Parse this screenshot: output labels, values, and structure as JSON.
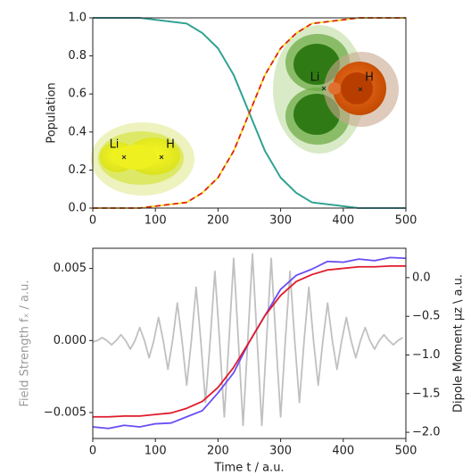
{
  "chart_data": [
    {
      "type": "line",
      "ylabel": "Population",
      "x": [
        0,
        25,
        50,
        75,
        100,
        125,
        150,
        175,
        200,
        225,
        250,
        275,
        300,
        325,
        350,
        375,
        400,
        425,
        450,
        475,
        500
      ],
      "series": [
        {
          "color": "#5b4fe0",
          "dashed": false,
          "values": [
            1.0,
            1.0,
            1.0,
            1.0,
            0.99,
            0.98,
            0.97,
            0.92,
            0.84,
            0.7,
            0.5,
            0.3,
            0.16,
            0.08,
            0.03,
            0.02,
            0.01,
            0,
            0,
            0,
            0
          ]
        },
        {
          "color": "#2aa88a",
          "dashed": false,
          "values": [
            1.0,
            1.0,
            1.0,
            1.0,
            0.99,
            0.98,
            0.97,
            0.92,
            0.84,
            0.7,
            0.5,
            0.3,
            0.16,
            0.08,
            0.03,
            0.02,
            0.01,
            0,
            0,
            0,
            0
          ]
        },
        {
          "color": "#f0e020",
          "dashed": false,
          "values": [
            0,
            0,
            0,
            0,
            0.01,
            0.02,
            0.03,
            0.08,
            0.16,
            0.3,
            0.5,
            0.7,
            0.84,
            0.92,
            0.97,
            0.98,
            0.99,
            1.0,
            1.0,
            1.0,
            1.0
          ]
        },
        {
          "color": "#e0201a",
          "dashed": true,
          "values": [
            0,
            0,
            0,
            0,
            0.01,
            0.02,
            0.03,
            0.08,
            0.16,
            0.3,
            0.5,
            0.7,
            0.84,
            0.92,
            0.97,
            0.98,
            0.99,
            1.0,
            1.0,
            1.0,
            1.0
          ]
        }
      ],
      "xlim": [
        0,
        500
      ],
      "xticks": [
        0,
        100,
        200,
        300,
        400,
        500
      ],
      "ylim": [
        0,
        1
      ],
      "yticks": [
        {
          "value": 0,
          "label": "0.0"
        },
        0.2,
        0.4,
        0.6,
        0.8,
        {
          "value": 1,
          "label": "1.0"
        }
      ],
      "annotations": [
        "Li",
        "H",
        "Li",
        "H"
      ]
    },
    {
      "type": "line",
      "xlabel": "Time t / a.u.",
      "ylabel": "Field Strength fₓ / a.u.",
      "ylabel_color": "#9a9a9a",
      "y2label": "Dipole Moment μz \\ a.u.",
      "series": [
        {
          "color": "#c0c0c0",
          "dashed": false,
          "x": [
            0,
            7.5,
            15,
            22.5,
            30,
            37.5,
            45,
            52.5,
            60,
            67.5,
            75,
            82.5,
            90,
            97.5,
            105,
            112.5,
            120,
            127.5,
            135,
            142.5,
            150,
            157.5,
            165,
            172.5,
            180,
            187.5,
            195,
            202.5,
            210,
            217.5,
            225,
            232.5,
            240,
            247.5,
            255,
            262.5,
            270,
            277.5,
            285,
            292.5,
            300,
            307.5,
            315,
            322.5,
            330,
            337.5,
            345,
            352.5,
            360,
            367.5,
            375,
            382.5,
            390,
            397.5,
            405,
            412.5,
            420,
            427.5,
            435,
            442.5,
            450,
            457.5,
            465,
            472.5,
            480,
            487.5,
            495
          ],
          "values": [
            -0.0001,
            0,
            0.0002,
            0,
            -0.0003,
            0,
            0.0004,
            0,
            -0.0006,
            0,
            0.0009,
            0,
            -0.0012,
            0,
            0.0016,
            0,
            -0.002,
            0,
            0.0026,
            0,
            -0.0031,
            0,
            0.0037,
            0,
            -0.0043,
            0,
            0.0048,
            0,
            -0.0053,
            0,
            0.0057,
            0,
            -0.0059,
            0,
            0.006,
            0,
            -0.0059,
            0,
            0.0057,
            0,
            -0.0053,
            0,
            0.0048,
            0,
            -0.0043,
            0,
            0.0037,
            0,
            -0.0031,
            0,
            0.0026,
            0,
            -0.002,
            0,
            0.0016,
            0,
            -0.0012,
            0,
            0.0009,
            0,
            -0.0006,
            0,
            0.0004,
            0,
            -0.0003,
            0,
            0.0002
          ]
        },
        {
          "color": "#6a4df5",
          "dashed": false,
          "axis": "y2",
          "x": [
            0,
            25,
            50,
            75,
            100,
            125,
            150,
            175,
            200,
            225,
            250,
            275,
            300,
            325,
            350,
            375,
            400,
            425,
            450,
            475,
            500
          ],
          "values": [
            -1.93,
            -1.95,
            -1.91,
            -1.93,
            -1.89,
            -1.88,
            -1.8,
            -1.72,
            -1.49,
            -1.23,
            -0.83,
            -0.49,
            -0.15,
            0.03,
            0.11,
            0.21,
            0.2,
            0.24,
            0.22,
            0.26,
            0.25
          ]
        },
        {
          "color": "#e01a2a",
          "dashed": false,
          "axis": "y2",
          "x": [
            0,
            25,
            50,
            75,
            100,
            125,
            150,
            175,
            200,
            225,
            250,
            275,
            300,
            325,
            350,
            375,
            400,
            425,
            450,
            475,
            500
          ],
          "values": [
            -1.8,
            -1.8,
            -1.79,
            -1.79,
            -1.77,
            -1.75,
            -1.69,
            -1.6,
            -1.42,
            -1.16,
            -0.83,
            -0.49,
            -0.23,
            -0.05,
            0.04,
            0.1,
            0.12,
            0.14,
            0.14,
            0.15,
            0.15
          ]
        }
      ],
      "xlim": [
        0,
        500
      ],
      "xticks": [
        0,
        100,
        200,
        300,
        400,
        500
      ],
      "ylim": [
        -0.0068,
        0.0064
      ],
      "yticks": [
        {
          "value": -0.005,
          "label": "−0.005"
        },
        {
          "value": 0,
          "label": "0.000"
        },
        0.005
      ],
      "y2lim": [
        -2.08,
        0.38
      ],
      "y2ticks": [
        {
          "value": -2,
          "label": "−2.0"
        },
        {
          "value": -1.5,
          "label": "−1.5"
        },
        {
          "value": -1,
          "label": "−1.0"
        },
        {
          "value": -0.5,
          "label": "−0.5"
        },
        {
          "value": 0,
          "label": "0.0"
        }
      ]
    }
  ]
}
